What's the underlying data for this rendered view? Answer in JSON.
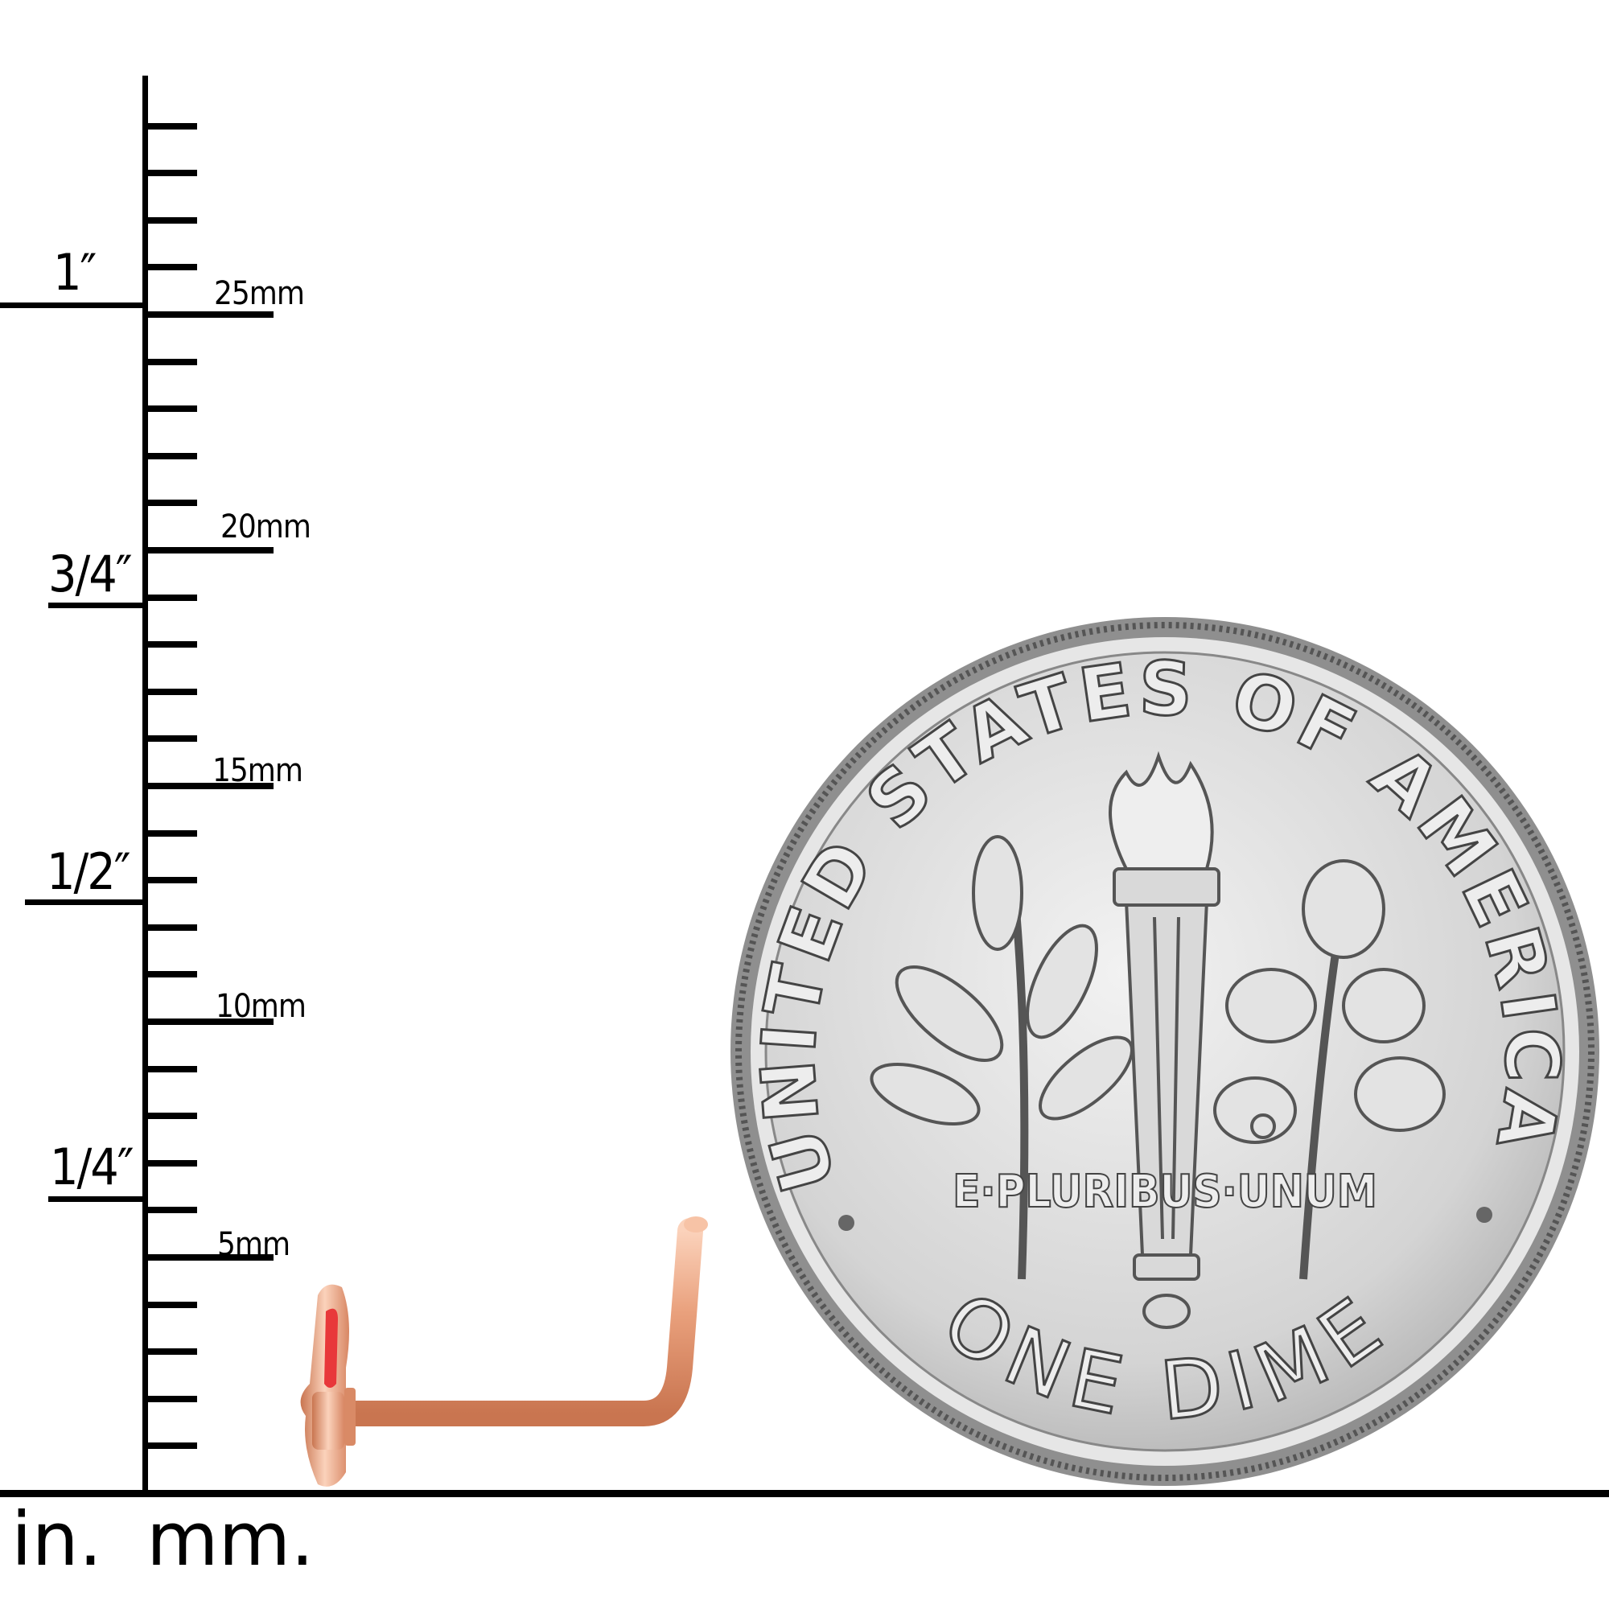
{
  "ruler": {
    "inch_labels": [
      "1/4″",
      "1/2″",
      "3/4″",
      "1″"
    ],
    "mm_labels": [
      "5mm",
      "10mm",
      "15mm",
      "20mm",
      "25mm"
    ],
    "unit_in": "in.",
    "unit_mm": "mm."
  },
  "coin": {
    "top_legend": "UNITED STATES OF AMERICA",
    "motto": "E·PLURIBUS·UNUM",
    "denomination": "ONE DIME"
  },
  "colors": {
    "rose_gold": "#e9a07c",
    "enamel_red": "#e8383a",
    "coin_silver": "#cfcfcf"
  }
}
